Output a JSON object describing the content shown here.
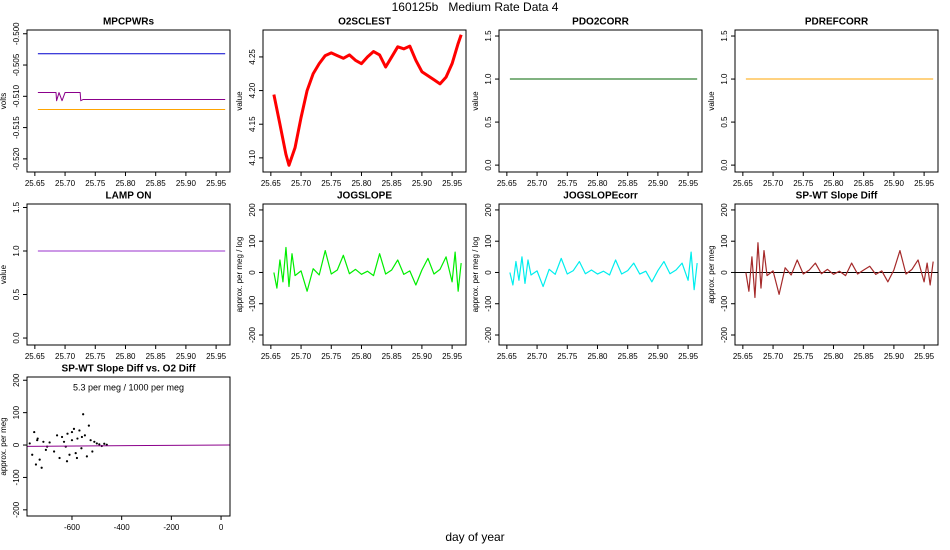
{
  "title": "160125b   Medium Rate Data 4",
  "xlabel": "day of year",
  "chart_data": [
    {
      "type": "line",
      "title": "MPCPWRs",
      "ylabel": "volts",
      "xlim": [
        25.637,
        25.973
      ],
      "xticks": [
        25.65,
        {
          "value": 25.7,
          "label": "25.70"
        },
        25.75,
        {
          "value": 25.8,
          "label": "25.80"
        },
        25.85,
        {
          "value": 25.9,
          "label": "25.90"
        },
        25.95
      ],
      "ylim": [
        -0.5221,
        -0.4994
      ],
      "yticks": [
        {
          "value": -0.5,
          "label": "-0.500"
        },
        -0.505,
        {
          "value": -0.51,
          "label": "-0.510"
        },
        -0.515,
        {
          "value": -0.52,
          "label": "-0.520"
        }
      ],
      "series": [
        {
          "color": "#0000cd",
          "x": [
            25.655,
            25.965
          ],
          "values": [
            -0.5032,
            -0.5032
          ]
        },
        {
          "color": "#ffa500",
          "x": [
            25.655,
            25.965
          ],
          "values": [
            -0.5121,
            -0.5121
          ]
        },
        {
          "color": "#8b008b",
          "x": [
            25.655,
            25.685,
            25.686,
            25.69,
            25.695,
            25.7,
            25.725,
            25.726,
            25.73,
            25.965
          ],
          "values": [
            -0.5094,
            -0.5094,
            -0.5107,
            -0.5094,
            -0.5107,
            -0.5094,
            -0.5094,
            -0.5107,
            -0.5105,
            -0.5105
          ]
        }
      ]
    },
    {
      "type": "line",
      "title": "O2SCLEST",
      "ylabel": "value",
      "xlim": [
        25.637,
        25.973
      ],
      "xticks": [
        25.65,
        {
          "value": 25.7,
          "label": "25.70"
        },
        25.75,
        {
          "value": 25.8,
          "label": "25.80"
        },
        25.85,
        {
          "value": 25.9,
          "label": "25.90"
        },
        25.95
      ],
      "ylim": [
        4.079,
        4.29
      ],
      "yticks": [
        {
          "value": 4.1,
          "label": "4.10"
        },
        4.15,
        {
          "value": 4.2,
          "label": "4.20"
        },
        4.25
      ],
      "series": [
        {
          "color": "#ff0000",
          "width": 3,
          "x": [
            25.655,
            25.665,
            25.675,
            25.68,
            25.69,
            25.7,
            25.71,
            25.72,
            25.73,
            25.74,
            25.75,
            25.76,
            25.77,
            25.78,
            25.79,
            25.8,
            25.81,
            25.82,
            25.83,
            25.84,
            25.85,
            25.86,
            25.87,
            25.88,
            25.89,
            25.9,
            25.91,
            25.92,
            25.93,
            25.94,
            25.95,
            25.96,
            25.965
          ],
          "values": [
            4.194,
            4.15,
            4.105,
            4.089,
            4.115,
            4.16,
            4.2,
            4.225,
            4.24,
            4.252,
            4.256,
            4.252,
            4.248,
            4.253,
            4.245,
            4.24,
            4.25,
            4.258,
            4.253,
            4.235,
            4.25,
            4.265,
            4.262,
            4.266,
            4.245,
            4.228,
            4.222,
            4.216,
            4.21,
            4.22,
            4.24,
            4.27,
            4.283
          ]
        }
      ]
    },
    {
      "type": "line",
      "title": "PDO2CORR",
      "ylabel": "value",
      "xlim": [
        25.637,
        25.973
      ],
      "xticks": [
        25.65,
        {
          "value": 25.7,
          "label": "25.70"
        },
        25.75,
        {
          "value": 25.8,
          "label": "25.80"
        },
        25.85,
        {
          "value": 25.9,
          "label": "25.90"
        },
        25.95
      ],
      "ylim": [
        -0.08,
        1.57
      ],
      "yticks": [
        {
          "value": 0,
          "label": "0.0"
        },
        0.5,
        {
          "value": 1,
          "label": "1.0"
        },
        1.5
      ],
      "series": [
        {
          "color": "#006400",
          "x": [
            25.655,
            25.965
          ],
          "values": [
            1,
            1
          ]
        }
      ]
    },
    {
      "type": "line",
      "title": "PDREFCORR",
      "ylabel": "value",
      "xlim": [
        25.637,
        25.973
      ],
      "xticks": [
        25.65,
        {
          "value": 25.7,
          "label": "25.70"
        },
        25.75,
        {
          "value": 25.8,
          "label": "25.80"
        },
        25.85,
        {
          "value": 25.9,
          "label": "25.90"
        },
        25.95
      ],
      "ylim": [
        -0.08,
        1.57
      ],
      "yticks": [
        {
          "value": 0,
          "label": "0.0"
        },
        0.5,
        {
          "value": 1,
          "label": "1.0"
        },
        1.5
      ],
      "series": [
        {
          "color": "#ffa500",
          "x": [
            25.655,
            25.965
          ],
          "values": [
            1,
            1
          ]
        }
      ]
    },
    {
      "type": "line",
      "title": "LAMP ON",
      "ylabel": "value",
      "xlim": [
        25.637,
        25.973
      ],
      "xticks": [
        25.65,
        {
          "value": 25.7,
          "label": "25.70"
        },
        25.75,
        {
          "value": 25.8,
          "label": "25.80"
        },
        25.85,
        {
          "value": 25.9,
          "label": "25.90"
        },
        25.95
      ],
      "ylim": [
        -0.08,
        1.54
      ],
      "yticks": [
        {
          "value": 0,
          "label": "0.0"
        },
        0.5,
        {
          "value": 1,
          "label": "1.0"
        },
        1.5
      ],
      "series": [
        {
          "color": "#9932cc",
          "x": [
            25.655,
            25.965
          ],
          "values": [
            1,
            1
          ]
        }
      ]
    },
    {
      "type": "line",
      "title": "JOGSLOPE",
      "ylabel": "approx. per meg / log",
      "xlim": [
        25.637,
        25.973
      ],
      "xticks": [
        25.65,
        {
          "value": 25.7,
          "label": "25.70"
        },
        25.75,
        {
          "value": 25.8,
          "label": "25.80"
        },
        25.85,
        {
          "value": 25.9,
          "label": "25.90"
        },
        25.95
      ],
      "ylim": [
        -232,
        219
      ],
      "yticks": [
        -200,
        -100,
        0,
        100,
        200
      ],
      "series": [
        {
          "color": "#00ee00",
          "width": 1.2,
          "x": [
            25.655,
            25.66,
            25.665,
            25.67,
            25.675,
            25.68,
            25.685,
            25.69,
            25.7,
            25.71,
            25.72,
            25.73,
            25.74,
            25.75,
            25.76,
            25.77,
            25.78,
            25.79,
            25.8,
            25.81,
            25.82,
            25.83,
            25.84,
            25.85,
            25.86,
            25.87,
            25.88,
            25.89,
            25.9,
            25.91,
            25.92,
            25.93,
            25.94,
            25.95,
            25.955,
            25.96,
            25.965
          ],
          "values": [
            0,
            -50,
            40,
            -30,
            80,
            -45,
            60,
            -10,
            5,
            -60,
            12,
            -8,
            70,
            -5,
            8,
            55,
            -4,
            10,
            -6,
            4,
            -10,
            60,
            -5,
            8,
            40,
            -6,
            5,
            -40,
            8,
            45,
            -5,
            10,
            50,
            -30,
            65,
            -60,
            30
          ]
        }
      ]
    },
    {
      "type": "line",
      "title": "JOGSLOPEcorr",
      "ylabel": "approx. per meg / log",
      "xlim": [
        25.637,
        25.973
      ],
      "xticks": [
        25.65,
        {
          "value": 25.7,
          "label": "25.70"
        },
        25.75,
        {
          "value": 25.8,
          "label": "25.80"
        },
        25.85,
        {
          "value": 25.9,
          "label": "25.90"
        },
        25.95
      ],
      "ylim": [
        -232,
        219
      ],
      "yticks": [
        -200,
        -100,
        0,
        100,
        200
      ],
      "series": [
        {
          "color": "#00eeee",
          "width": 1.2,
          "x": [
            25.655,
            25.66,
            25.665,
            25.67,
            25.675,
            25.68,
            25.685,
            25.69,
            25.7,
            25.71,
            25.72,
            25.73,
            25.74,
            25.75,
            25.76,
            25.77,
            25.78,
            25.79,
            25.8,
            25.81,
            25.82,
            25.83,
            25.84,
            25.85,
            25.86,
            25.87,
            25.88,
            25.89,
            25.9,
            25.91,
            25.92,
            25.93,
            25.94,
            25.95,
            25.955,
            25.96,
            25.965
          ],
          "values": [
            0,
            -40,
            35,
            -25,
            50,
            -35,
            40,
            -8,
            5,
            -45,
            10,
            -6,
            45,
            -5,
            6,
            35,
            -4,
            8,
            -5,
            4,
            -8,
            40,
            -5,
            6,
            30,
            -5,
            4,
            -30,
            6,
            35,
            -4,
            8,
            30,
            -25,
            65,
            -55,
            30
          ]
        }
      ]
    },
    {
      "type": "line",
      "title": "SP-WT Slope Diff",
      "ylabel": "approx. per meg",
      "xlim": [
        25.637,
        25.973
      ],
      "xticks": [
        25.65,
        {
          "value": 25.7,
          "label": "25.70"
        },
        25.75,
        {
          "value": 25.8,
          "label": "25.80"
        },
        25.85,
        {
          "value": 25.9,
          "label": "25.90"
        },
        25.95
      ],
      "ylim": [
        -232,
        219
      ],
      "yticks": [
        -200,
        -100,
        0,
        100,
        200
      ],
      "series": [
        {
          "color": "#000000",
          "x": [
            25.637,
            25.973
          ],
          "values": [
            0,
            0
          ]
        },
        {
          "color": "#a52a2a",
          "width": 1.2,
          "x": [
            25.655,
            25.66,
            25.665,
            25.67,
            25.675,
            25.68,
            25.685,
            25.69,
            25.7,
            25.71,
            25.72,
            25.73,
            25.74,
            25.75,
            25.76,
            25.77,
            25.78,
            25.79,
            25.8,
            25.81,
            25.82,
            25.83,
            25.84,
            25.85,
            25.86,
            25.87,
            25.88,
            25.89,
            25.9,
            25.91,
            25.92,
            25.93,
            25.94,
            25.95,
            25.955,
            25.96,
            25.965
          ],
          "values": [
            0,
            -60,
            50,
            -80,
            95,
            -50,
            70,
            -10,
            5,
            -70,
            15,
            -8,
            40,
            -5,
            8,
            30,
            -4,
            10,
            -6,
            4,
            -10,
            30,
            -5,
            8,
            20,
            -6,
            5,
            -30,
            8,
            70,
            -5,
            10,
            40,
            -30,
            30,
            -40,
            35
          ]
        }
      ]
    },
    {
      "type": "scatter",
      "title": "SP-WT Slope Diff vs. O2 Diff",
      "ylabel": "approx. per meg",
      "annotation": "5.3 per meg / 1000 per meg",
      "annotation_color": "#8b008b",
      "xlim": [
        -781,
        36
      ],
      "xticks": [
        -600,
        -400,
        -200,
        0
      ],
      "ylim": [
        -219,
        210
      ],
      "yticks": [
        -200,
        -100,
        0,
        100,
        200
      ],
      "series": [
        {
          "color": "#000000",
          "x": [
            -770,
            -760,
            -752,
            -745,
            -738,
            -730,
            -722,
            -715,
            -705,
            -690,
            -672,
            -660,
            -650,
            -640,
            -632,
            -625,
            -618,
            -610,
            -600,
            -592,
            -585,
            -578,
            -570,
            -562,
            -555,
            -548,
            -540,
            -532,
            -525,
            -518,
            -510,
            -500,
            -490,
            -480,
            -470,
            -460,
            -620,
            -600,
            -580,
            -560,
            -700,
            -740
          ],
          "values": [
            5,
            -30,
            40,
            -60,
            20,
            -45,
            -70,
            10,
            -15,
            8,
            -20,
            30,
            -40,
            25,
            10,
            -5,
            35,
            -30,
            15,
            50,
            -25,
            20,
            45,
            -10,
            95,
            30,
            -35,
            60,
            15,
            -20,
            10,
            5,
            2,
            -3,
            4,
            1,
            -50,
            40,
            -40,
            25,
            -5,
            15
          ]
        },
        {
          "color": "#8b008b",
          "type": "line",
          "x": [
            -781,
            36
          ],
          "values": [
            -4.1,
            0.2
          ]
        }
      ]
    }
  ]
}
